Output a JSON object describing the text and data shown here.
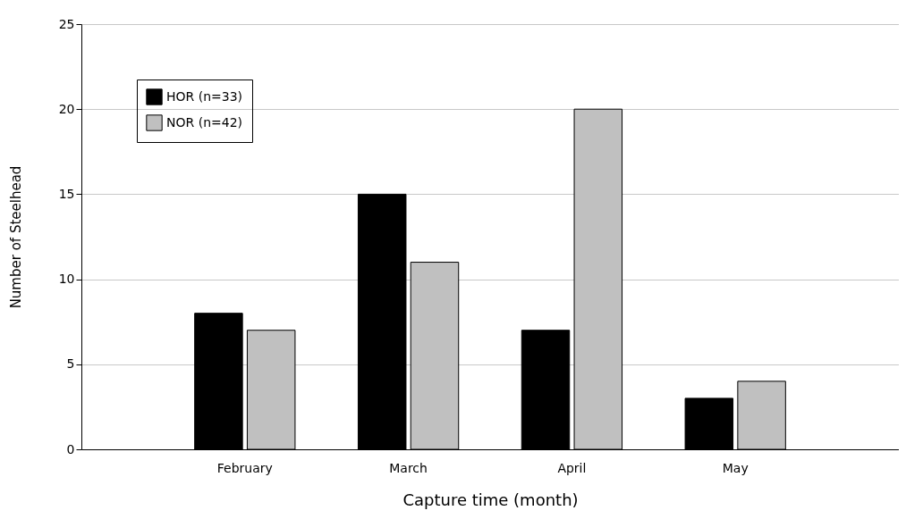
{
  "chart_data": {
    "type": "bar",
    "xlabel": "Capture time (month)",
    "ylabel": "Number of Steelhead",
    "categories": [
      "February",
      "March",
      "April",
      "May"
    ],
    "series": [
      {
        "name": "HOR (n=33)",
        "color": "#000000",
        "values": [
          8,
          15,
          7,
          3
        ]
      },
      {
        "name": "NOR (n=42)",
        "color": "#c0c0c0",
        "values": [
          7,
          11,
          20,
          4
        ]
      }
    ],
    "ylim": [
      0,
      25
    ],
    "yticks": [
      0,
      5,
      10,
      15,
      20,
      25
    ],
    "grid": "y",
    "legend": "top left"
  }
}
